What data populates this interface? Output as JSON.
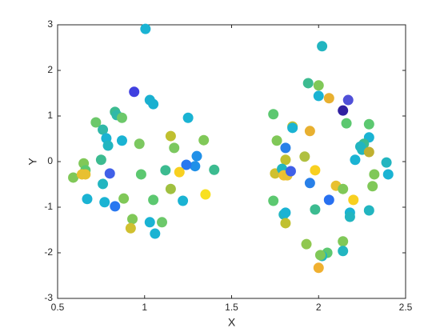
{
  "chart_data": {
    "type": "scatter",
    "xlabel": "X",
    "ylabel": "Y",
    "xlim": [
      0.5,
      2.5
    ],
    "ylim": [
      -3,
      3
    ],
    "xticks": [
      0.5,
      1,
      1.5,
      2,
      2.5
    ],
    "yticks": [
      -3,
      -2,
      -1,
      0,
      1,
      2,
      3
    ],
    "x": [
      1.005,
      0.94,
      1.03,
      1.05,
      1.25,
      0.72,
      0.76,
      0.83,
      0.84,
      0.87,
      0.78,
      0.79,
      0.87,
      0.97,
      1.15,
      1.17,
      1.34,
      1.3,
      1.29,
      1.24,
      1.2,
      1.12,
      0.98,
      0.8,
      0.75,
      0.65,
      0.66,
      0.59,
      0.64,
      0.66,
      0.76,
      0.67,
      0.77,
      0.83,
      0.88,
      1.05,
      1.15,
      1.22,
      1.35,
      1.4,
      0.93,
      0.92,
      1.03,
      1.1,
      1.06,
      2.02,
      1.94,
      2.0,
      2.0,
      2.06,
      2.17,
      2.14,
      1.74,
      1.85,
      1.85,
      1.95,
      2.16,
      2.29,
      2.29,
      2.26,
      2.24,
      2.25,
      2.29,
      2.21,
      1.76,
      1.81,
      1.81,
      1.92,
      2.39,
      2.4,
      2.32,
      2.31,
      1.75,
      1.79,
      1.8,
      1.82,
      1.84,
      1.98,
      1.95,
      2.1,
      2.14,
      2.06,
      2.2,
      1.74,
      1.8,
      1.81,
      1.98,
      2.18,
      2.18,
      2.29,
      1.81,
      2.14,
      1.93,
      2.14,
      2.05,
      2.02,
      2.01,
      2.0
    ],
    "values": [
      2.91,
      1.53,
      1.35,
      1.26,
      0.96,
      0.86,
      0.7,
      1.09,
      1.02,
      0.96,
      0.51,
      0.35,
      0.46,
      0.39,
      0.56,
      0.3,
      0.47,
      0.12,
      -0.1,
      -0.07,
      -0.23,
      -0.19,
      -0.28,
      -0.26,
      0.04,
      -0.04,
      -0.19,
      -0.35,
      -0.28,
      -0.28,
      -0.49,
      -0.82,
      -0.89,
      -0.98,
      -0.81,
      -0.84,
      -0.6,
      -0.86,
      -0.72,
      -0.18,
      -1.26,
      -1.46,
      -1.33,
      -1.33,
      -1.58,
      2.53,
      1.72,
      1.67,
      1.44,
      1.39,
      1.35,
      1.12,
      1.04,
      0.77,
      0.74,
      0.67,
      0.84,
      0.82,
      0.53,
      0.39,
      0.33,
      0.26,
      0.21,
      0.04,
      0.46,
      0.3,
      0.04,
      0.11,
      -0.02,
      -0.28,
      -0.28,
      -0.54,
      -0.26,
      -0.16,
      -0.3,
      -0.3,
      -0.21,
      -0.19,
      -0.47,
      -0.53,
      -0.6,
      -0.84,
      -0.84,
      -0.86,
      -1.16,
      -1.12,
      -1.05,
      -1.12,
      -1.21,
      -1.07,
      -1.35,
      -1.75,
      -1.81,
      -1.96,
      -2.0,
      -2.07,
      -2.05,
      -2.33
    ],
    "colors": [
      "#1ab3d3",
      "#4040e0",
      "#1ab0d0",
      "#1ab0d0",
      "#1ab3d3",
      "#6cc86a",
      "#30b8a8",
      "#3cbb90",
      "#30b8a8",
      "#6cc86a",
      "#1ab3d3",
      "#22b5c0",
      "#1ab3d3",
      "#7cc860",
      "#c0c030",
      "#7cc860",
      "#80c858",
      "#2090e8",
      "#2090e8",
      "#2878f0",
      "#f8d020",
      "#3cbb90",
      "#5cc870",
      "#4060e8",
      "#3cbb90",
      "#80c858",
      "#5cc870",
      "#80c858",
      "#e8c030",
      "#e8c030",
      "#22b5c0",
      "#1ab3d3",
      "#1ab3d3",
      "#2878f0",
      "#80c858",
      "#5cc870",
      "#a0c040",
      "#1ab3d3",
      "#f8e020",
      "#3cbb90",
      "#80c858",
      "#d0c030",
      "#1ab3d3",
      "#6cc86a",
      "#1ab3d3",
      "#22b5c0",
      "#3cbb90",
      "#80c858",
      "#1ab3d3",
      "#e8b030",
      "#5050d8",
      "#3020a0",
      "#5cc870",
      "#c0c030",
      "#1ab3d3",
      "#e8b030",
      "#5cc870",
      "#5cc870",
      "#1ab3d3",
      "#3cbb90",
      "#22b5c0",
      "#22b5c0",
      "#c0b030",
      "#1ab3d3",
      "#80c858",
      "#2880e8",
      "#c0c030",
      "#b0c040",
      "#22b5c0",
      "#1ab3d3",
      "#80c858",
      "#80c858",
      "#d0c030",
      "#22b5c0",
      "#f0c030",
      "#e8c030",
      "#4060e8",
      "#f8d020",
      "#2880e8",
      "#e8c030",
      "#80c858",
      "#2870f0",
      "#f8d020",
      "#5cc870",
      "#22b5c0",
      "#1ab3d3",
      "#3cbb90",
      "#1ab3d3",
      "#22b5c0",
      "#22b5c0",
      "#c0c030",
      "#80c858",
      "#90c850",
      "#22b5c0",
      "#5cc870",
      "#22b5c0",
      "#80c858",
      "#f0b030"
    ]
  }
}
